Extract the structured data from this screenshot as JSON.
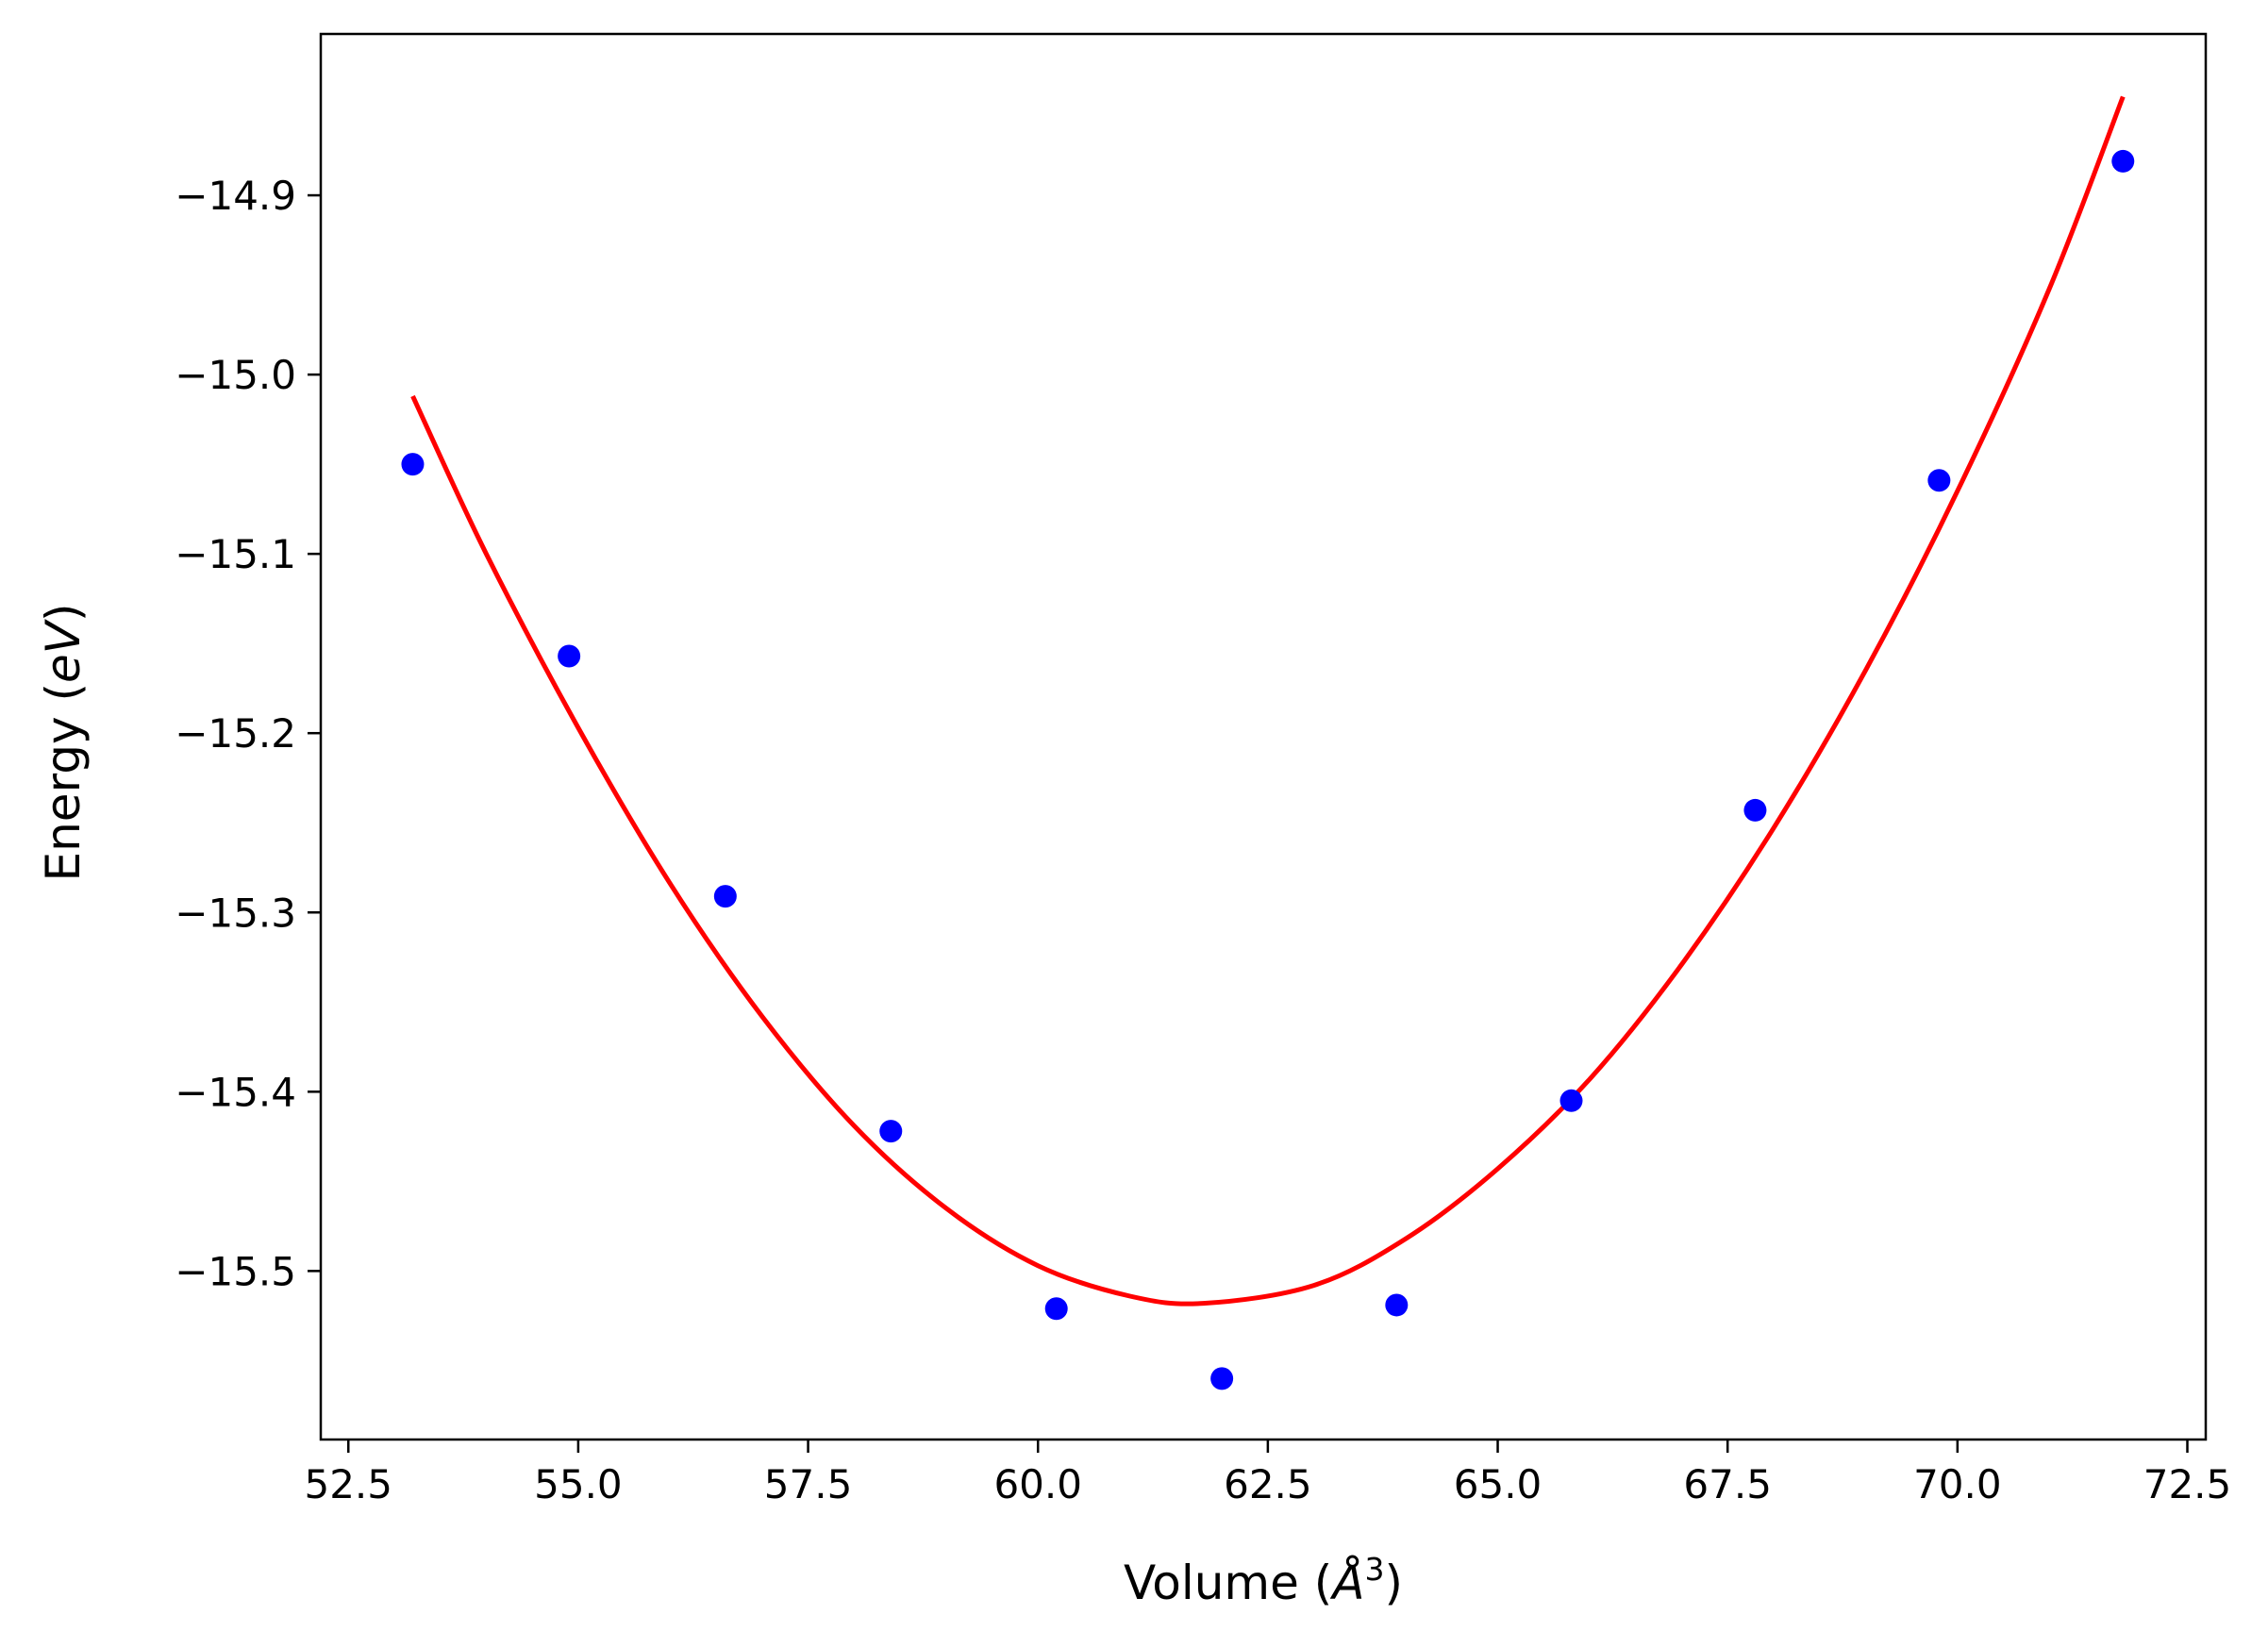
{
  "chart_data": {
    "type": "scatter",
    "xlabel": "Volume (Å³)",
    "xlabel_parts": {
      "prefix": "Volume (",
      "symbol": "Å",
      "exponent": "3",
      "suffix": ")"
    },
    "ylabel": "Energy (eV)",
    "ylabel_parts": {
      "prefix": "Energy (",
      "symbol": "eV",
      "suffix": ")"
    },
    "xlim": [
      52.2,
      72.7
    ],
    "ylim": [
      -15.594,
      -14.81
    ],
    "x_ticks": [
      52.5,
      55.0,
      57.5,
      60.0,
      62.5,
      65.0,
      67.5,
      70.0,
      72.5
    ],
    "x_tick_labels": [
      "52.5",
      "55.0",
      "57.5",
      "60.0",
      "62.5",
      "65.0",
      "67.5",
      "70.0",
      "72.5"
    ],
    "y_ticks": [
      -15.5,
      -15.4,
      -15.3,
      -15.2,
      -15.1,
      -15.0,
      -14.9
    ],
    "y_tick_labels": [
      "−15.5",
      "−15.4",
      "−15.3",
      "−15.2",
      "−15.1",
      "−15.0",
      "−14.9"
    ],
    "grid": false,
    "series": [
      {
        "kind": "scatter",
        "color": "#0000ff",
        "points": [
          {
            "x": 53.2,
            "y": -15.05
          },
          {
            "x": 54.9,
            "y": -15.157
          },
          {
            "x": 56.6,
            "y": -15.291
          },
          {
            "x": 58.4,
            "y": -15.422
          },
          {
            "x": 60.2,
            "y": -15.521
          },
          {
            "x": 62.0,
            "y": -15.56
          },
          {
            "x": 63.9,
            "y": -15.519
          },
          {
            "x": 65.8,
            "y": -15.405
          },
          {
            "x": 67.8,
            "y": -15.243
          },
          {
            "x": 69.8,
            "y": -15.059
          },
          {
            "x": 71.8,
            "y": -14.881
          }
        ]
      },
      {
        "kind": "line",
        "color": "#ff0000",
        "points": [
          {
            "x": 53.2,
            "y": -15.012
          },
          {
            "x": 54.0,
            "y": -15.1
          },
          {
            "x": 55.0,
            "y": -15.197
          },
          {
            "x": 56.0,
            "y": -15.284
          },
          {
            "x": 57.0,
            "y": -15.358
          },
          {
            "x": 58.0,
            "y": -15.419
          },
          {
            "x": 59.0,
            "y": -15.465
          },
          {
            "x": 60.0,
            "y": -15.497
          },
          {
            "x": 61.0,
            "y": -15.514
          },
          {
            "x": 61.8,
            "y": -15.518
          },
          {
            "x": 63.0,
            "y": -15.508
          },
          {
            "x": 64.0,
            "y": -15.482
          },
          {
            "x": 65.0,
            "y": -15.443
          },
          {
            "x": 66.0,
            "y": -15.393
          },
          {
            "x": 67.0,
            "y": -15.329
          },
          {
            "x": 68.0,
            "y": -15.253
          },
          {
            "x": 69.0,
            "y": -15.165
          },
          {
            "x": 70.0,
            "y": -15.065
          },
          {
            "x": 71.0,
            "y": -14.952
          },
          {
            "x": 71.8,
            "y": -14.845
          }
        ]
      }
    ]
  }
}
